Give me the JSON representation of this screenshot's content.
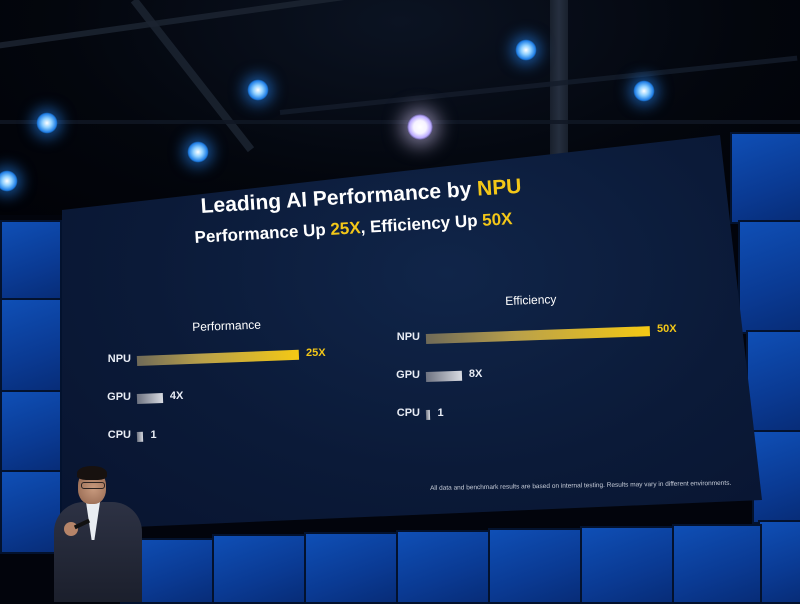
{
  "slide": {
    "title_prefix": "Leading AI Performance by ",
    "title_highlight": "NPU",
    "subtitle_part1": "Performance Up ",
    "subtitle_highlight1": "25X",
    "subtitle_part2": ", Efficiency Up ",
    "subtitle_highlight2": "50X",
    "disclaimer": "All data and benchmark results are based on internal testing. Results may vary in different environments."
  },
  "performance": {
    "label": "Performance",
    "rows": [
      {
        "name": "NPU",
        "value": 25,
        "value_label": "25X",
        "style": "gold"
      },
      {
        "name": "GPU",
        "value": 4,
        "value_label": "4X",
        "style": "grey"
      },
      {
        "name": "CPU",
        "value": 1,
        "value_label": "1",
        "style": "grey"
      }
    ]
  },
  "efficiency": {
    "label": "Efficiency",
    "rows": [
      {
        "name": "NPU",
        "value": 50,
        "value_label": "50X",
        "style": "gold"
      },
      {
        "name": "GPU",
        "value": 8,
        "value_label": "8X",
        "style": "grey"
      },
      {
        "name": "CPU",
        "value": 1,
        "value_label": "1",
        "style": "grey"
      }
    ]
  },
  "colors": {
    "highlight": "#f3c718",
    "screen_bg": "#0b1a38",
    "side_panel": "#0a3a93"
  }
}
